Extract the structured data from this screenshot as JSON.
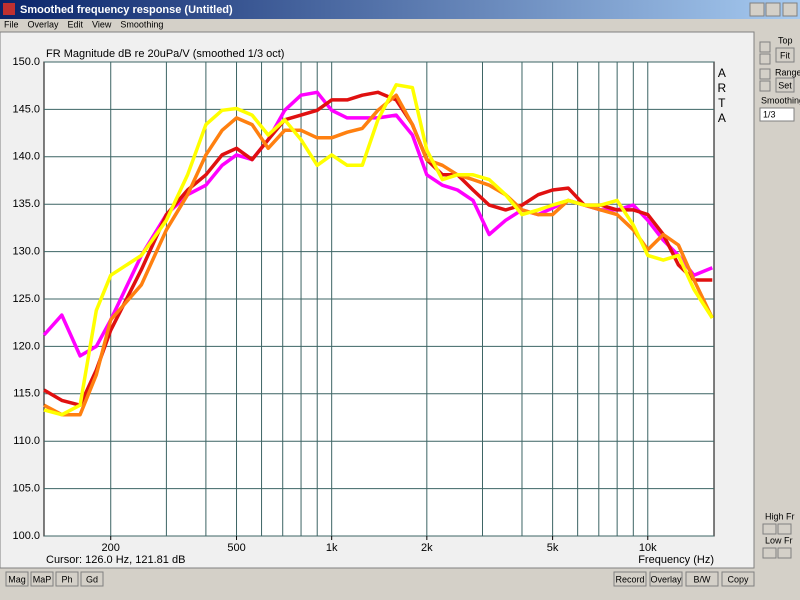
{
  "window": {
    "title": "Smoothed frequency response (Untitled)"
  },
  "menu": [
    "File",
    "Overlay",
    "Edit",
    "View",
    "Smoothing"
  ],
  "side_panel": {
    "top_label": "Top",
    "fit_button": "Fit",
    "range_label": "Range",
    "set_button": "Set",
    "smoothing_label": "Smoothing",
    "smoothing_value": "1/3",
    "high_fr_label": "High Fr",
    "low_fr_label": "Low Fr"
  },
  "bottom_left_buttons": [
    "Mag",
    "MaP",
    "Ph",
    "Gd"
  ],
  "bottom_right_buttons": [
    "Record",
    "Overlay",
    "B/W",
    "Copy"
  ],
  "status": {
    "cursor": "Cursor: 126.0 Hz, 121.81 dB"
  },
  "chart_data": {
    "type": "line",
    "title": "FR Magnitude dB re 20uPa/V (smoothed 1/3 oct)",
    "watermark": "ARTA",
    "x_label": "Frequency (Hz)",
    "xscale": "log",
    "xlim": [
      123,
      16200
    ],
    "ylim": [
      100,
      150
    ],
    "grid": true,
    "xticks": [
      200,
      500,
      {
        "value": 1000,
        "label": "1k"
      },
      {
        "value": 2000,
        "label": "2k"
      },
      {
        "value": 5000,
        "label": "5k"
      },
      {
        "value": 10000,
        "label": "10k"
      }
    ],
    "xgrid": [
      200,
      300,
      400,
      500,
      600,
      700,
      800,
      900,
      1000,
      2000,
      3000,
      4000,
      5000,
      6000,
      7000,
      8000,
      9000,
      10000
    ],
    "yticks": [
      {
        "value": 100,
        "label": "100.0"
      },
      {
        "value": 105,
        "label": "105.0"
      },
      {
        "value": 110,
        "label": "110.0"
      },
      {
        "value": 115,
        "label": "115.0"
      },
      {
        "value": 120,
        "label": "120.0"
      },
      {
        "value": 125,
        "label": "125.0"
      },
      {
        "value": 130,
        "label": "130.0"
      },
      {
        "value": 135,
        "label": "135.0"
      },
      {
        "value": 140,
        "label": "140.0"
      },
      {
        "value": 145,
        "label": "145.0"
      },
      {
        "value": 150,
        "label": "150.0"
      }
    ],
    "x": [
      123,
      140,
      160,
      180,
      200,
      250,
      300,
      350,
      400,
      450,
      500,
      560,
      630,
      710,
      800,
      900,
      1000,
      1120,
      1250,
      1400,
      1600,
      1800,
      2000,
      2240,
      2500,
      2800,
      3150,
      3550,
      4000,
      4500,
      5000,
      5600,
      6300,
      7100,
      8000,
      9000,
      10000,
      11200,
      12500,
      14000,
      16000
    ],
    "series": [
      {
        "color": "#ff00ff",
        "values": [
          121.2,
          123.3,
          119,
          120,
          122.8,
          129.6,
          133.9,
          136,
          137,
          139.1,
          140.2,
          139.7,
          141.8,
          144.9,
          146.5,
          146.8,
          144.9,
          144.1,
          144.1,
          144.1,
          144.4,
          142.3,
          138.1,
          137,
          136.5,
          135.4,
          131.8,
          133.3,
          134.4,
          133.9,
          134.6,
          135.4,
          134.9,
          134.4,
          134.4,
          134.9,
          133.3,
          131.2,
          129.6,
          127.5,
          128.3
        ]
      },
      {
        "color": "#e01010",
        "values": [
          115.4,
          114.3,
          113.8,
          117.5,
          121.7,
          128.1,
          133.9,
          136.5,
          138.1,
          140.2,
          140.9,
          139.7,
          141.8,
          143.9,
          144.4,
          144.9,
          146,
          146,
          146.5,
          146.8,
          146,
          143.4,
          139.7,
          138.1,
          138.1,
          136.5,
          134.9,
          134.4,
          134.9,
          136,
          136.5,
          136.7,
          134.9,
          134.9,
          134.4,
          134.4,
          133.9,
          131.8,
          128.6,
          127,
          127
        ]
      },
      {
        "color": "#ff8010",
        "values": [
          113.8,
          112.8,
          112.8,
          117,
          122.8,
          126.5,
          132.3,
          136,
          140.2,
          142.8,
          144.1,
          143.4,
          140.9,
          142.8,
          142.8,
          142,
          142,
          142.6,
          143,
          144.9,
          146.5,
          143.4,
          139.7,
          139.1,
          138.1,
          137.6,
          137,
          136,
          134.4,
          133.9,
          133.9,
          135.4,
          134.9,
          134.4,
          133.9,
          132.3,
          130.2,
          131.8,
          130.7,
          127,
          123
        ]
      },
      {
        "color": "#ffff00",
        "values": [
          113.3,
          112.8,
          113.8,
          123.8,
          127.5,
          129.6,
          133.3,
          138.1,
          143.4,
          144.9,
          145.1,
          144.4,
          142.3,
          143.9,
          141.8,
          139.1,
          140.2,
          139.1,
          139.1,
          143.9,
          147.6,
          147.3,
          140.7,
          137.6,
          138.1,
          138.1,
          137.6,
          136,
          133.9,
          134.4,
          134.9,
          135.4,
          134.9,
          134.9,
          135.4,
          132.8,
          129.6,
          129.1,
          129.6,
          126,
          123
        ]
      }
    ]
  }
}
